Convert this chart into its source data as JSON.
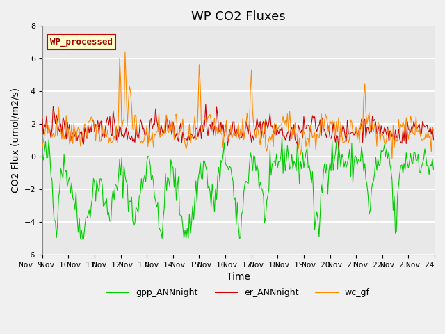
{
  "title": "WP CO2 Fluxes",
  "xlabel": "Time",
  "ylabel": "CO2 Flux (umol/m2/s)",
  "ylim": [
    -6,
    8
  ],
  "xlim": [
    0,
    360
  ],
  "x_tick_labels": [
    "Nov 9",
    "Nov 10",
    "Nov 11",
    "Nov 12",
    "Nov 13",
    "Nov 14",
    "Nov 15",
    "Nov 16",
    "Nov 17",
    "Nov 18",
    "Nov 19",
    "Nov 20",
    "Nov 21",
    "Nov 22",
    "Nov 23",
    "Nov 24"
  ],
  "x_tick_positions": [
    0,
    24,
    48,
    72,
    96,
    120,
    144,
    168,
    192,
    216,
    240,
    264,
    288,
    312,
    336,
    360
  ],
  "yticks": [
    -6,
    -4,
    -2,
    0,
    2,
    4,
    6,
    8
  ],
  "legend_label": "WP_processed",
  "series_labels": [
    "gpp_ANNnight",
    "er_ANNnight",
    "wc_gf"
  ],
  "series_colors": [
    "#00cc00",
    "#cc0000",
    "#ff8800"
  ],
  "background_color": "#e8e8e8",
  "plot_bg_color": "#e8e8e8",
  "grid_color": "#ffffff",
  "title_fontsize": 13,
  "axis_label_fontsize": 10,
  "tick_label_fontsize": 8,
  "legend_box_color": "#ffffcc",
  "legend_text_color": "#990000",
  "n_points": 360
}
